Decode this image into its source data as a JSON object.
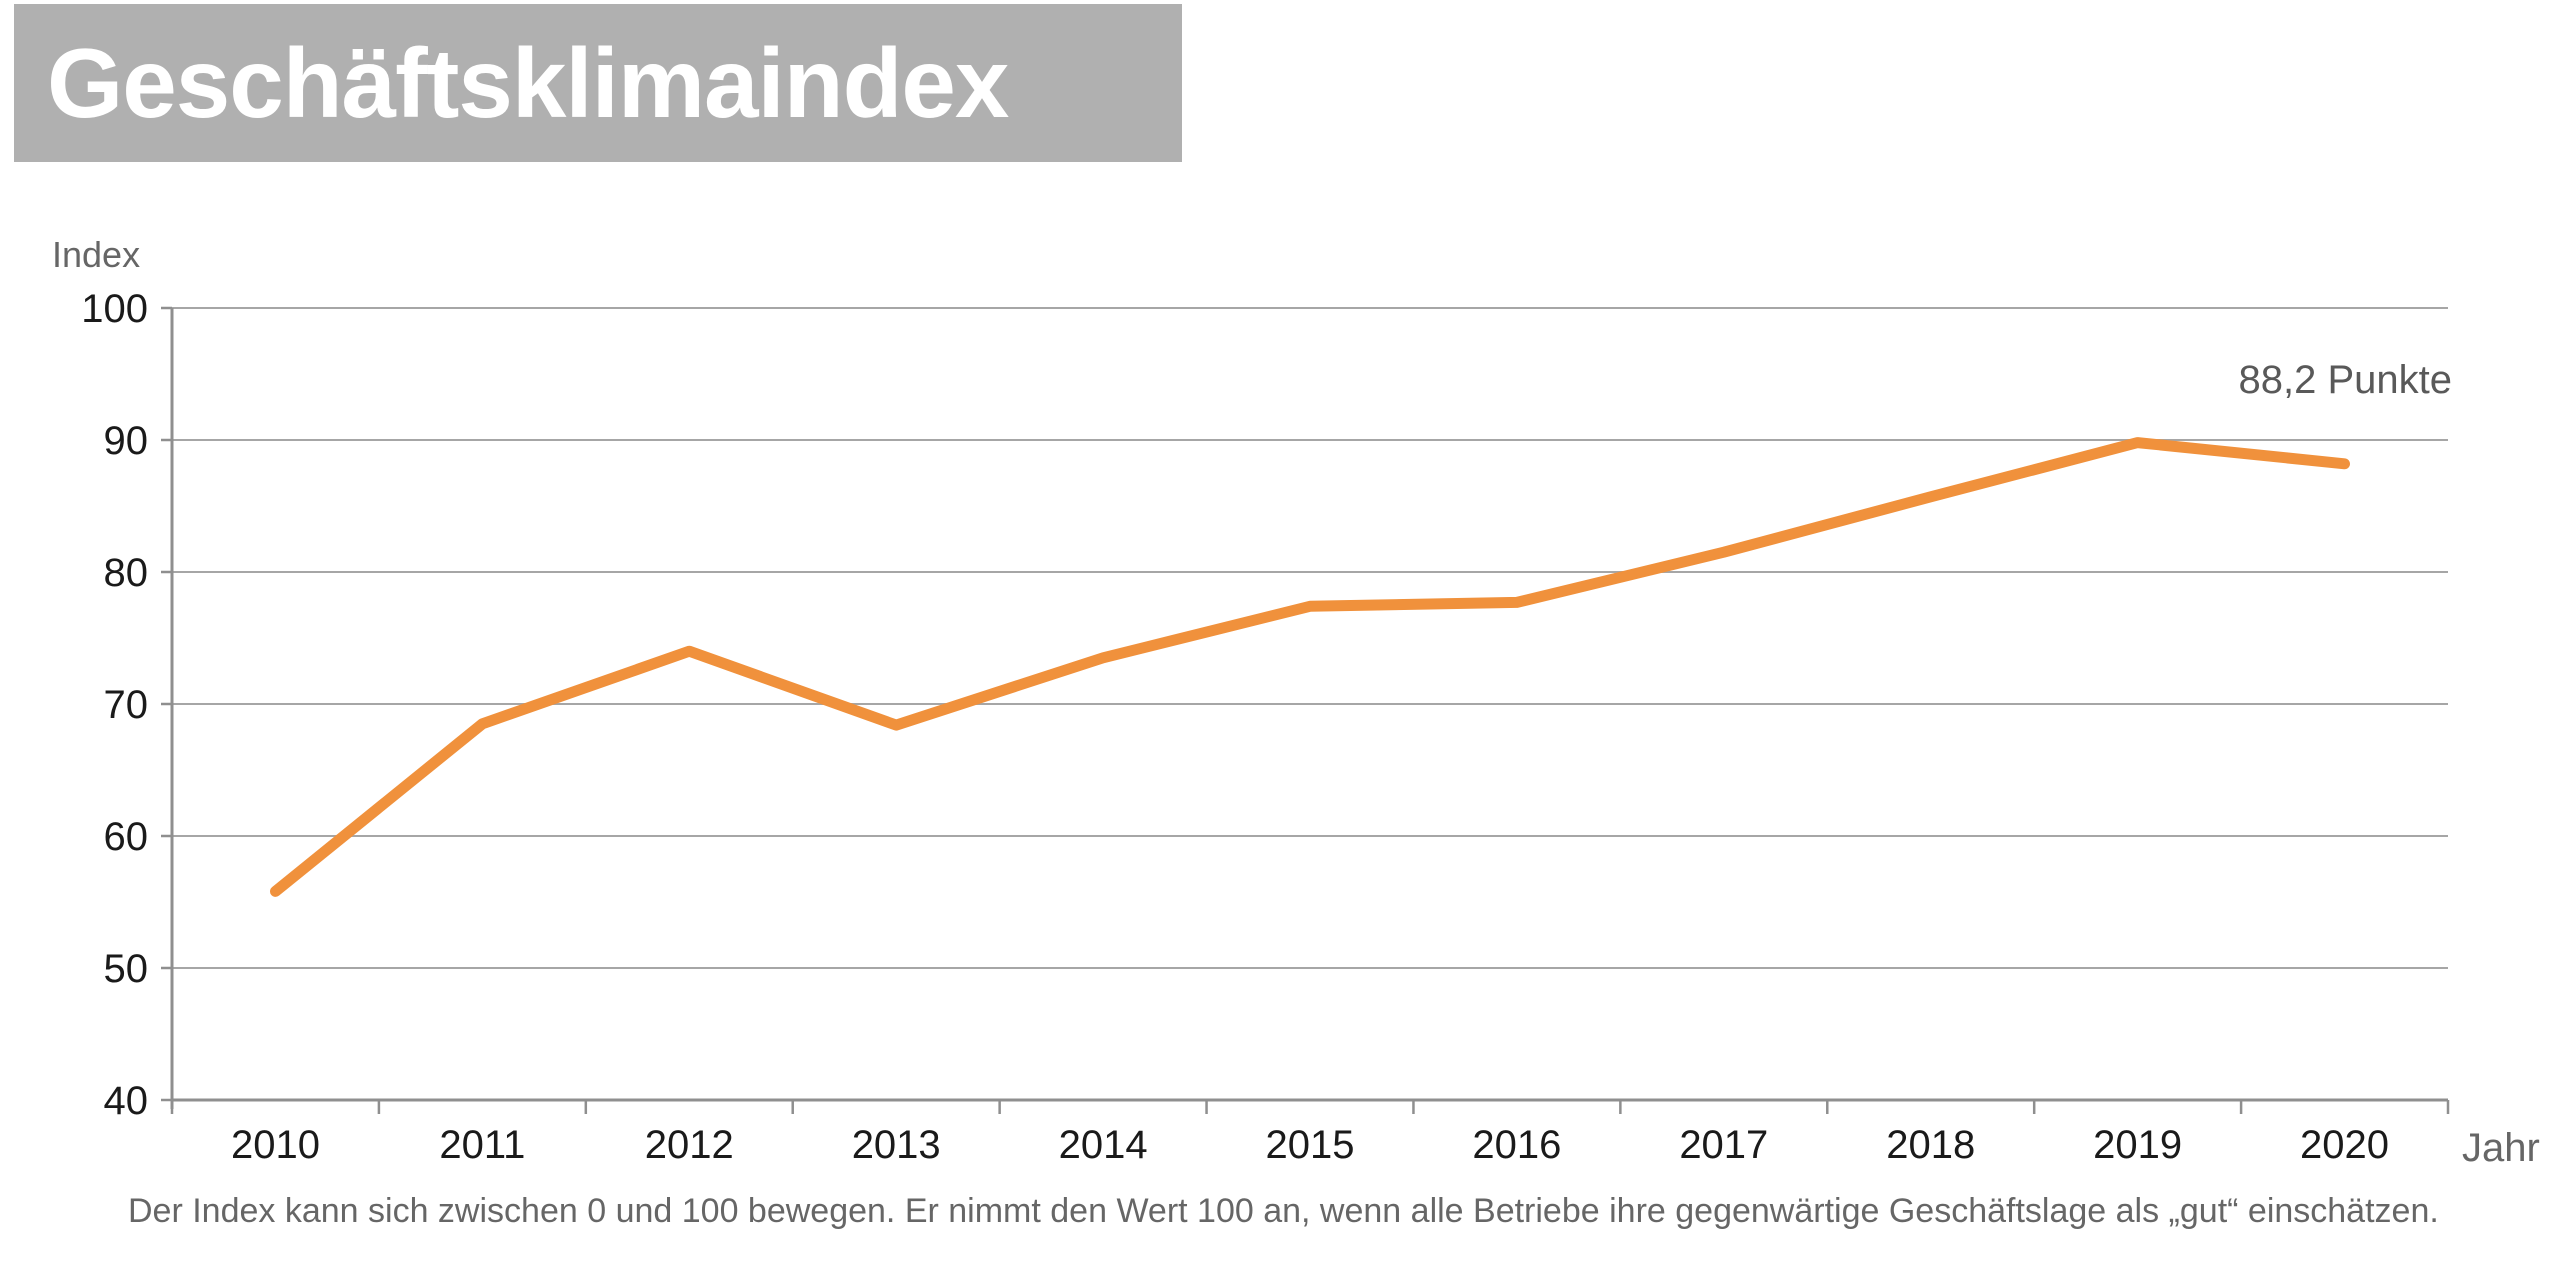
{
  "title": "Geschäftsklimaindex",
  "y_axis_title": "Index",
  "x_axis_title": "Jahr",
  "annotation": "88,2 Punkte",
  "caption": "Der Index kann sich zwischen 0 und 100 bewegen. Er nimmt den Wert 100 an, wenn alle Betriebe ihre gegenwärtige Geschäftslage als „gut“ einschätzen.",
  "colors": {
    "title_bar": "#B0B0B0",
    "title_text": "#FFFFFF",
    "line": "#F0913C",
    "grid": "#A6A6A6",
    "axis": "#8F8F8F",
    "tick_label": "#1A1A1A",
    "muted_text": "#666666",
    "annotation_text": "#595959"
  },
  "chart_data": {
    "type": "line",
    "title": "Geschäftsklimaindex",
    "x": [
      "2010",
      "2011",
      "2012",
      "2013",
      "2014",
      "2015",
      "2016",
      "2017",
      "2018",
      "2019",
      "2020"
    ],
    "series": [
      {
        "name": "Geschäftsklimaindex",
        "values": [
          55.8,
          68.5,
          74.0,
          68.4,
          73.5,
          77.4,
          77.7,
          81.5,
          85.7,
          89.8,
          88.2
        ]
      }
    ],
    "xlabel": "Jahr",
    "ylabel": "Index",
    "ylim": [
      40,
      100
    ],
    "ytick_step": 10,
    "grid": true,
    "legend": false,
    "annotation_last_point": "88,2 Punkte"
  }
}
